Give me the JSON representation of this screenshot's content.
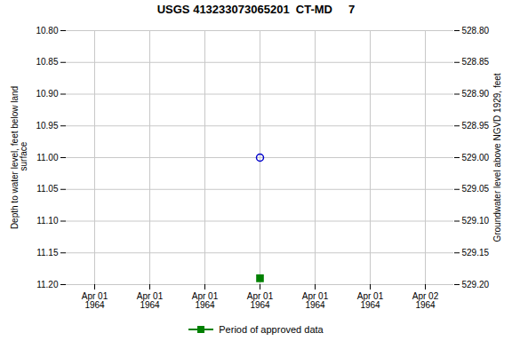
{
  "chart_data": {
    "type": "scatter",
    "title": "USGS 413233073065201  CT-MD     7",
    "y_label": "Depth to water level, feet below land\n surface",
    "y2_label": "Groundwater level above NGVD 1929, feet",
    "categories": [
      "Apr 01\n1964",
      "Apr 01\n1964",
      "Apr 01\n1964",
      "Apr 01\n1964",
      "Apr 01\n1964",
      "Apr 01\n1964",
      "Apr 02\n1964"
    ],
    "series": [
      {
        "color": "#0000cc",
        "marker": "open_circle",
        "values": [
          null,
          null,
          null,
          11.0,
          null,
          null,
          null
        ]
      },
      {
        "name": "Period of approved data",
        "color": "#008000",
        "marker": "square",
        "values": [
          null,
          null,
          null,
          11.19,
          null,
          null,
          null
        ]
      }
    ],
    "ylim": [
      11.2,
      10.8
    ],
    "yticks": [
      {
        "value": 10.8,
        "label": "10.80"
      },
      {
        "value": 10.85,
        "label": "10.85"
      },
      {
        "value": 10.9,
        "label": "10.90"
      },
      {
        "value": 10.95,
        "label": "10.95"
      },
      {
        "value": 11.0,
        "label": "11.00"
      },
      {
        "value": 11.05,
        "label": "11.05"
      },
      {
        "value": 11.1,
        "label": "11.10"
      },
      {
        "value": 11.15,
        "label": "11.15"
      },
      {
        "value": 11.2,
        "label": "11.20"
      }
    ],
    "y2lim": [
      529.2,
      528.8
    ],
    "y2ticks": [
      {
        "value": 529.2,
        "label": "529.20"
      },
      {
        "value": 529.15,
        "label": "529.15"
      },
      {
        "value": 529.1,
        "label": "529.10"
      },
      {
        "value": 529.05,
        "label": "529.05"
      },
      {
        "value": 529.0,
        "label": "529.00"
      },
      {
        "value": 528.95,
        "label": "528.95"
      },
      {
        "value": 528.9,
        "label": "528.90"
      },
      {
        "value": 528.85,
        "label": "528.85"
      },
      {
        "value": 528.8,
        "label": "528.80"
      }
    ],
    "grid": true,
    "legend": "bottom"
  }
}
